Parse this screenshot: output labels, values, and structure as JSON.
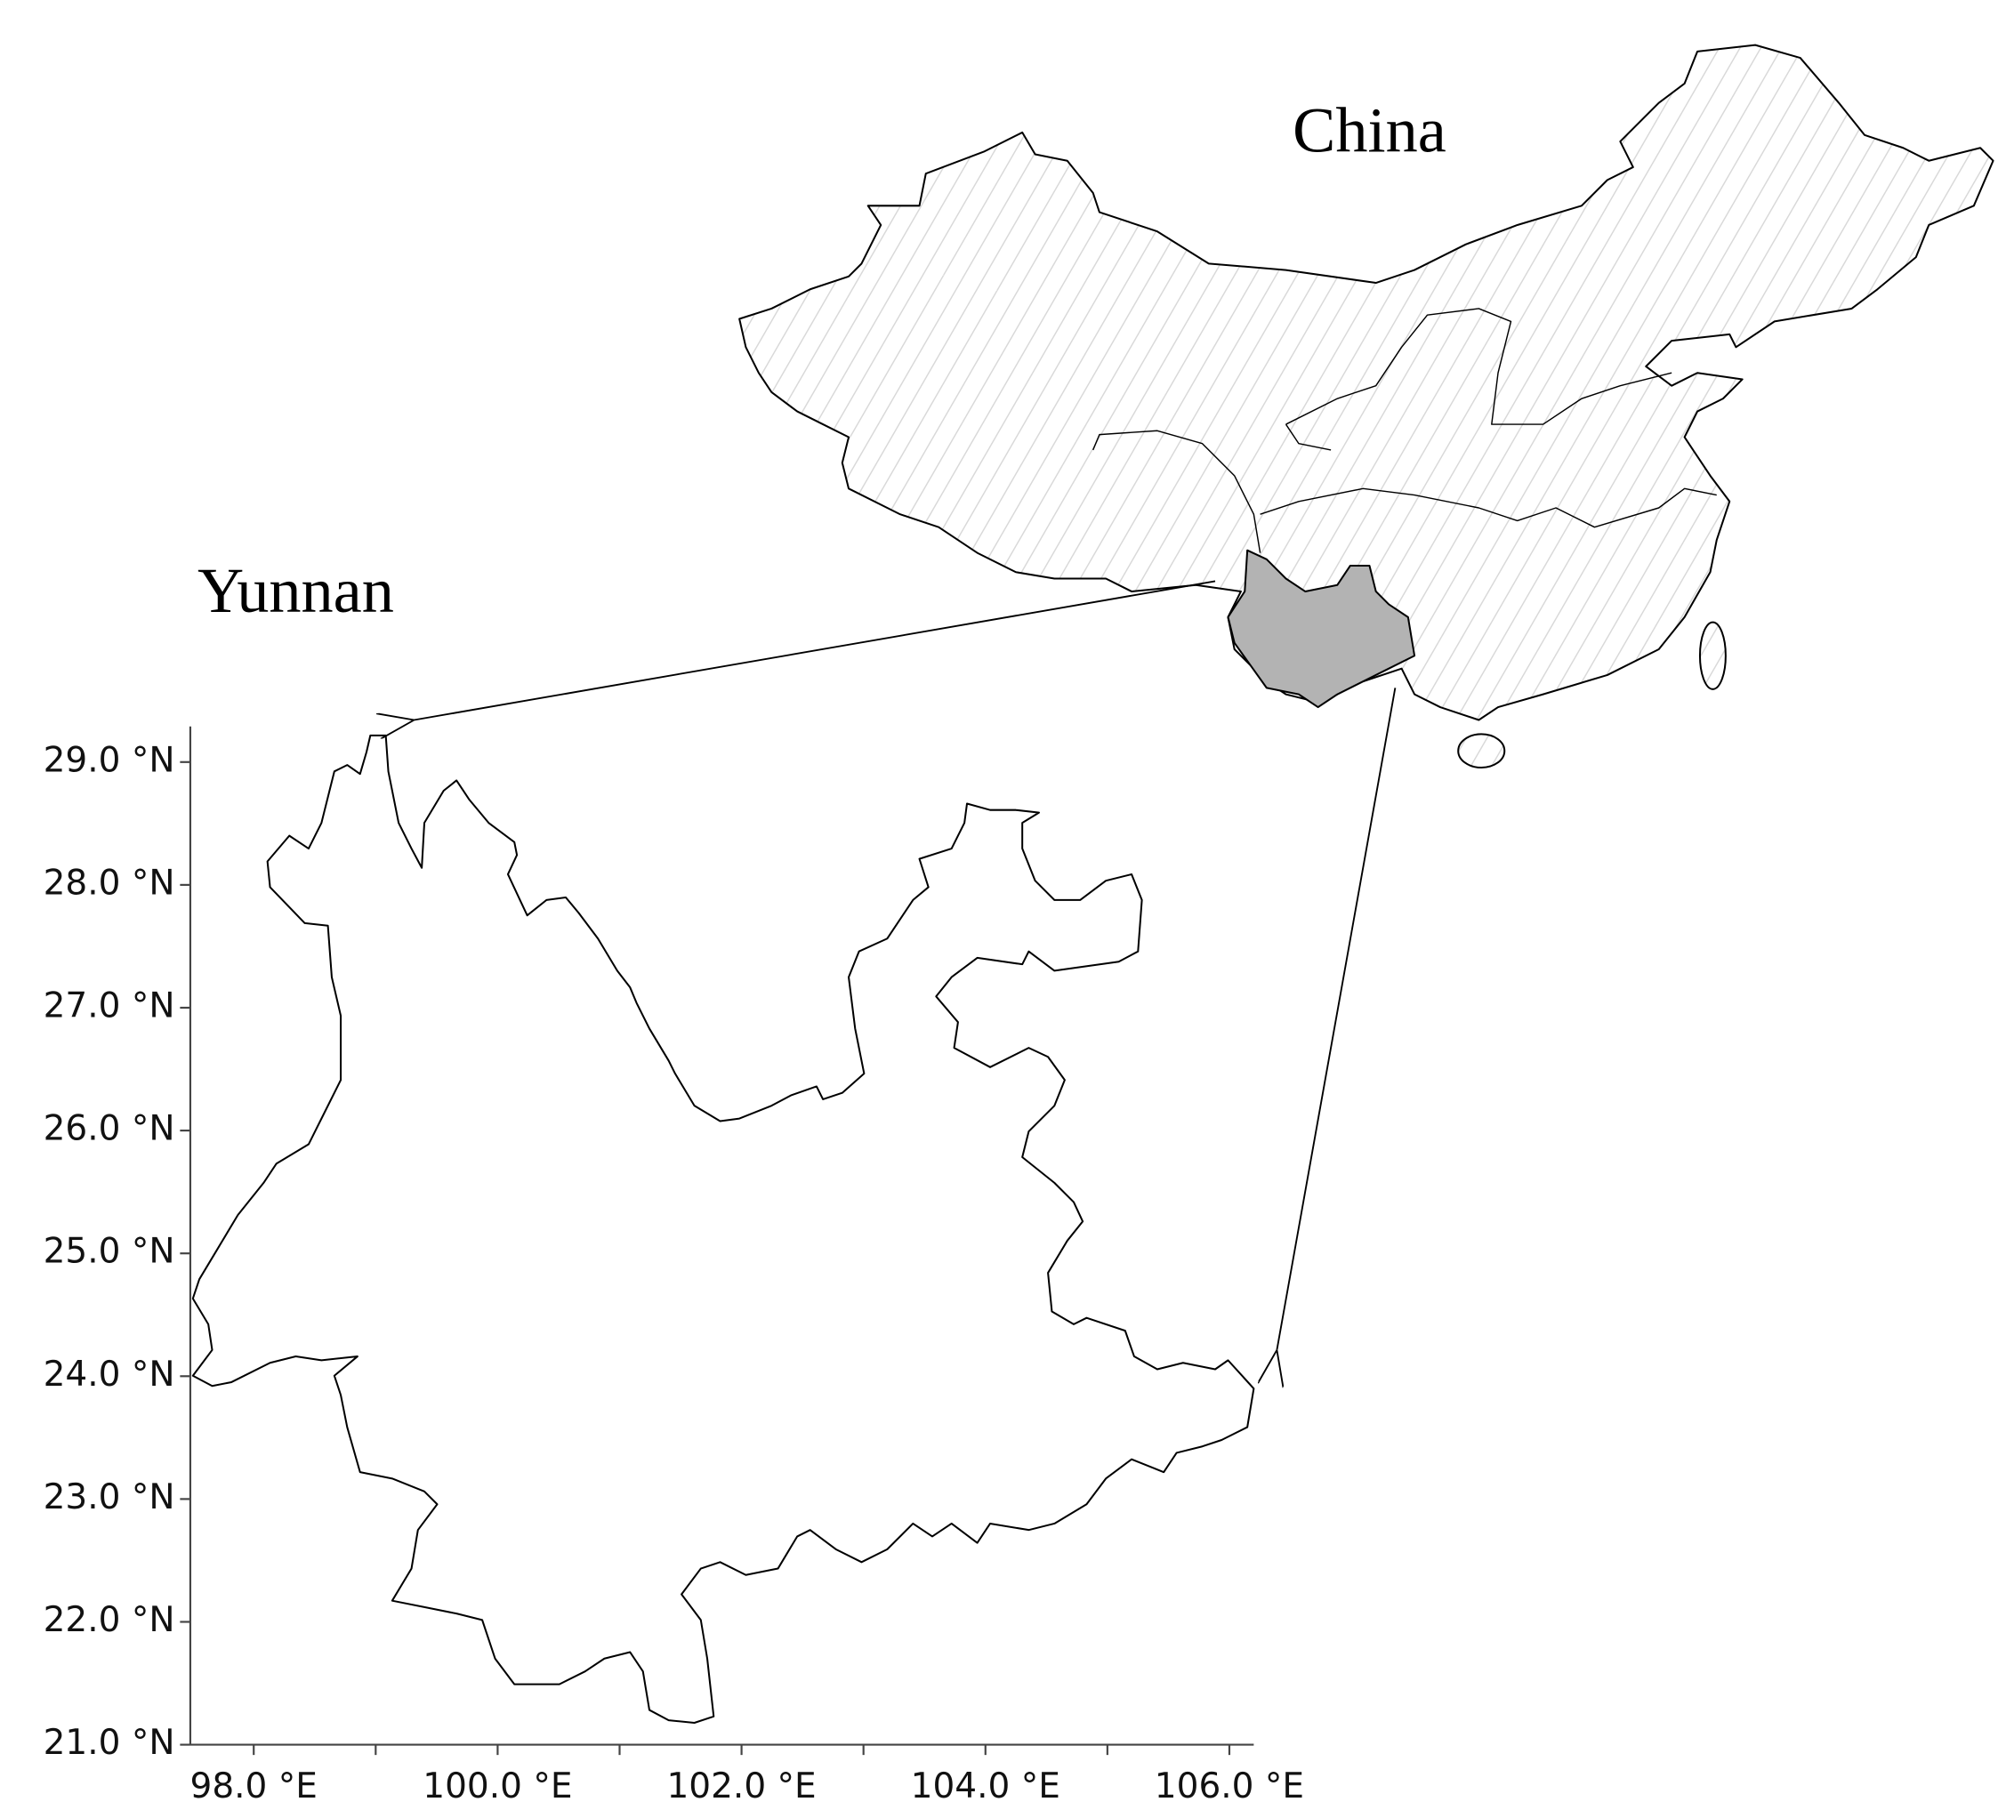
{
  "map": {
    "labels": {
      "country": "China",
      "province": "Yunnan"
    },
    "xlim": [
      97.48,
      106.2
    ],
    "ylim": [
      21.0,
      29.29
    ],
    "xticks": [
      {
        "value": 98,
        "label": "98.0 °E"
      },
      {
        "value": 100,
        "label": "100.0 °E"
      },
      {
        "value": 102,
        "label": "102.0 °E"
      },
      {
        "value": 104,
        "label": "104.0 °E"
      },
      {
        "value": 106,
        "label": "106.0 °E"
      }
    ],
    "minor_xticks": [
      99,
      101,
      103,
      105
    ],
    "yticks": [
      {
        "value": 21,
        "label": "21.0 °N"
      },
      {
        "value": 22,
        "label": "22.0 °N"
      },
      {
        "value": 23,
        "label": "23.0 °N"
      },
      {
        "value": 24,
        "label": "24.0 °N"
      },
      {
        "value": 25,
        "label": "25.0 °N"
      },
      {
        "value": 26,
        "label": "26.0 °N"
      },
      {
        "value": 27,
        "label": "27.0 °N"
      },
      {
        "value": 28,
        "label": "28.0 °N"
      },
      {
        "value": 29,
        "label": "29.0 °N"
      }
    ]
  }
}
